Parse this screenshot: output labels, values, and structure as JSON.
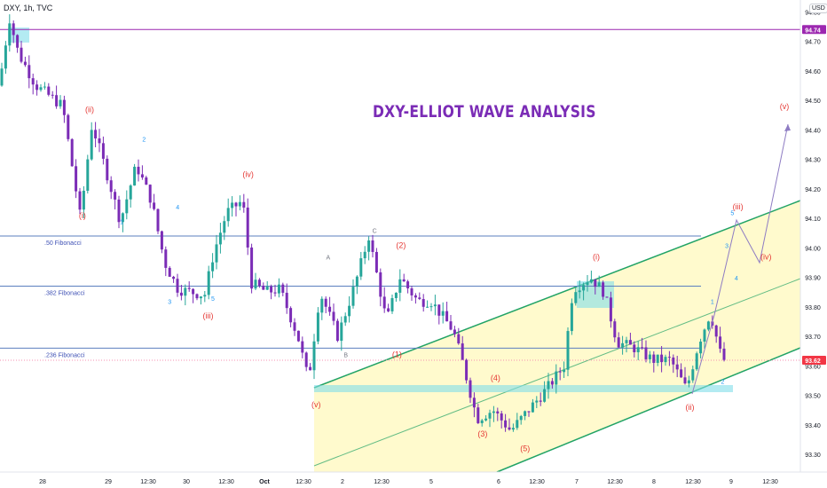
{
  "header": {
    "symbol": "DXY, 1h, TVC",
    "currency": "USD"
  },
  "overlay_title": "DXY-ELLIOT WAVE ANALYSIS",
  "colors": {
    "up": "#26a69a",
    "down": "#7b2cb6",
    "fib_line": "#5b7fbf",
    "top_line": "#9c27b0",
    "channel": "#21a366",
    "channel_fill": "#fff9c4",
    "wave_red": "#e53935",
    "wave_blue": "#2196f3",
    "projection": "#8e7cc3",
    "current_price_bg": "#f23645",
    "top_price_bg": "#9c27b0",
    "support_zone": "#80deea"
  },
  "chart_data": {
    "type": "candlestick",
    "title": "DXY-ELLIOT WAVE ANALYSIS",
    "symbol": "DXY",
    "interval": "1h",
    "source": "TVC",
    "ylim": [
      93.24,
      94.84
    ],
    "yticks": [
      93.3,
      93.4,
      93.5,
      93.6,
      93.7,
      93.8,
      93.9,
      94.0,
      94.1,
      94.2,
      94.3,
      94.4,
      94.5,
      94.6,
      94.7,
      94.8
    ],
    "xticks": [
      "28",
      "29",
      "12:30",
      "30",
      "12:30",
      "Oct",
      "12:30",
      "2",
      "12:30",
      "5",
      "6",
      "12:30",
      "7",
      "12:30",
      "8",
      "12:30",
      "9",
      "12:30"
    ],
    "current_price": "93.62",
    "top_price": "94.74",
    "horizontal_levels": [
      {
        "label": "",
        "value": 94.74
      },
      {
        "label": ".50 Fibonacci",
        "value": 94.04
      },
      {
        "label": ".382 Fibonacci",
        "value": 93.87
      },
      {
        "label": ".236 Fibonacci",
        "value": 93.66
      }
    ],
    "wave_labels": [
      {
        "text": "(ii)",
        "x": 0.112,
        "y": 94.46,
        "color": "red"
      },
      {
        "text": "(i)",
        "x": 0.103,
        "y": 94.1,
        "color": "red"
      },
      {
        "text": "2",
        "x": 0.18,
        "y": 94.36,
        "color": "blue"
      },
      {
        "text": "1",
        "x": 0.152,
        "y": 94.08,
        "color": "blue"
      },
      {
        "text": "4",
        "x": 0.222,
        "y": 94.13,
        "color": "blue"
      },
      {
        "text": "(iv)",
        "x": 0.31,
        "y": 94.24,
        "color": "red"
      },
      {
        "text": "3",
        "x": 0.212,
        "y": 93.81,
        "color": "blue"
      },
      {
        "text": "5",
        "x": 0.266,
        "y": 93.82,
        "color": "blue"
      },
      {
        "text": "(iii)",
        "x": 0.26,
        "y": 93.76,
        "color": "red"
      },
      {
        "text": "C",
        "x": 0.468,
        "y": 94.05,
        "color": "gray"
      },
      {
        "text": "A",
        "x": 0.41,
        "y": 93.96,
        "color": "gray"
      },
      {
        "text": "B",
        "x": 0.432,
        "y": 93.63,
        "color": "gray"
      },
      {
        "text": "(2)",
        "x": 0.501,
        "y": 94.0,
        "color": "red"
      },
      {
        "text": "(1)",
        "x": 0.496,
        "y": 93.63,
        "color": "red"
      },
      {
        "text": "(v)",
        "x": 0.395,
        "y": 93.46,
        "color": "red"
      },
      {
        "text": "(4)",
        "x": 0.619,
        "y": 93.55,
        "color": "red"
      },
      {
        "text": "(3)",
        "x": 0.603,
        "y": 93.36,
        "color": "red"
      },
      {
        "text": "(5)",
        "x": 0.656,
        "y": 93.31,
        "color": "red"
      },
      {
        "text": "(i)",
        "x": 0.745,
        "y": 93.96,
        "color": "red"
      },
      {
        "text": "(ii)",
        "x": 0.862,
        "y": 93.45,
        "color": "red"
      },
      {
        "text": "1",
        "x": 0.89,
        "y": 93.81,
        "color": "blue"
      },
      {
        "text": "2",
        "x": 0.903,
        "y": 93.54,
        "color": "blue"
      },
      {
        "text": "3",
        "x": 0.908,
        "y": 94.0,
        "color": "blue"
      },
      {
        "text": "4",
        "x": 0.92,
        "y": 93.89,
        "color": "blue"
      },
      {
        "text": "5",
        "x": 0.915,
        "y": 94.11,
        "color": "blue"
      },
      {
        "text": "(iii)",
        "x": 0.922,
        "y": 94.13,
        "color": "red"
      },
      {
        "text": "(iv)",
        "x": 0.957,
        "y": 93.96,
        "color": "red"
      },
      {
        "text": "(v)",
        "x": 0.98,
        "y": 94.47,
        "color": "red"
      }
    ]
  }
}
